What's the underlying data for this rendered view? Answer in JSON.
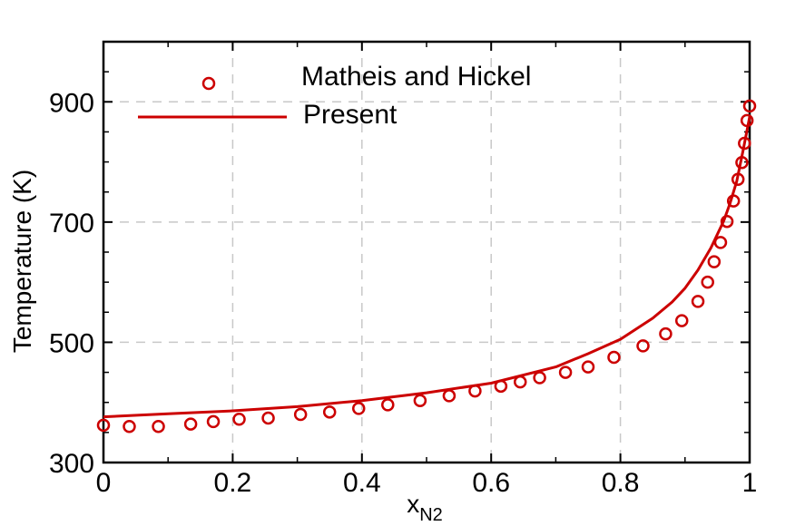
{
  "chart_data": {
    "type": "scatter",
    "title": "",
    "xlabel": "x",
    "xlabel_sub": "N2",
    "ylabel": "Temperature (K)",
    "xlim": [
      0,
      1
    ],
    "ylim": [
      300,
      1000
    ],
    "xticks": [
      0,
      0.2,
      0.4,
      0.6,
      0.8,
      1
    ],
    "xtick_labels": [
      "0",
      "0.2",
      "0.4",
      "0.6",
      "0.8",
      "1"
    ],
    "yticks": [
      300,
      500,
      700,
      900
    ],
    "ytick_labels": [
      "300",
      "500",
      "700",
      "900"
    ],
    "grid": true,
    "legend_position": "top-left",
    "colors": {
      "series": "#cc0000",
      "grid": "#c8c8c8",
      "axis": "#000000"
    },
    "series": [
      {
        "name": "Matheis and Hickel",
        "style": "markers",
        "marker": "open-circle",
        "x": [
          0,
          0.04,
          0.085,
          0.135,
          0.17,
          0.21,
          0.255,
          0.305,
          0.35,
          0.395,
          0.44,
          0.49,
          0.535,
          0.575,
          0.615,
          0.645,
          0.675,
          0.715,
          0.75,
          0.79,
          0.835,
          0.87,
          0.895,
          0.92,
          0.935,
          0.945,
          0.955,
          0.965,
          0.975,
          0.982,
          0.988,
          0.992,
          0.996,
          1.0
        ],
        "y": [
          362,
          360,
          360,
          364,
          368,
          372,
          374,
          380,
          384,
          390,
          396,
          403,
          411,
          419,
          427,
          434,
          441,
          450,
          459,
          475,
          494,
          514,
          536,
          568,
          600,
          634,
          666,
          701,
          735,
          771,
          799,
          831,
          869,
          893
        ]
      },
      {
        "name": "Present",
        "style": "line",
        "x": [
          0,
          0.1,
          0.2,
          0.3,
          0.4,
          0.5,
          0.6,
          0.7,
          0.75,
          0.8,
          0.85,
          0.88,
          0.9,
          0.92,
          0.94,
          0.96,
          0.97,
          0.98,
          0.99,
          1.0
        ],
        "y": [
          376,
          381,
          386,
          393,
          403,
          416,
          432,
          459,
          481,
          505,
          540,
          567,
          590,
          620,
          657,
          702,
          732,
          768,
          820,
          875
        ]
      }
    ]
  }
}
